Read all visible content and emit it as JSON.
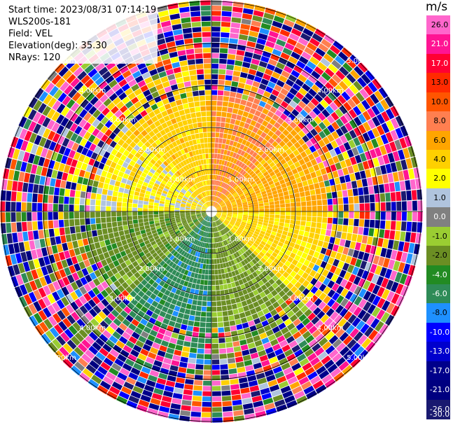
{
  "header": {
    "start_time_label": "Start time: 2023/08/31 07:14:19",
    "instrument_label": "WLS200s-181",
    "field_label": "Field: VEL",
    "elevation_label": "Elevation(deg): 35.30",
    "nrays_label": "NRays: 120"
  },
  "colorbar": {
    "unit": "m/s",
    "ticks": [
      "26.0",
      "21.0",
      "17.0",
      "13.0",
      "10.0",
      "8.0",
      "6.0",
      "4.0",
      "2.0",
      "1.0",
      "0.0",
      "-1.0",
      "-2.0",
      "-4.0",
      "-6.0",
      "-8.0",
      "-10.0",
      "-13.0",
      "-17.0",
      "-21.0",
      "-26.0",
      "-30.0"
    ],
    "colors": [
      "#ff66cc",
      "#ff1493",
      "#ff0033",
      "#ff2a00",
      "#ff5500",
      "#ff7f50",
      "#ffa500",
      "#ffd000",
      "#ffff00",
      "#b0c4de",
      "#808080",
      "#9acd32",
      "#6b8e23",
      "#228b22",
      "#2e8b57",
      "#1e90ff",
      "#0000ff",
      "#0000cd",
      "#00008b",
      "#000080",
      "#191970"
    ]
  },
  "range_rings": {
    "labels": [
      "1.00km",
      "2.00km",
      "3.00km",
      "4.00km",
      "5.00km"
    ]
  },
  "velocity_sectors": [
    {
      "azimuth_start": 0,
      "azimuth_end": 45,
      "value": 6.0
    },
    {
      "azimuth_start": 45,
      "azimuth_end": 90,
      "value": 4.5
    },
    {
      "azimuth_start": 90,
      "azimuth_end": 135,
      "value": 2.5
    },
    {
      "azimuth_start": 135,
      "azimuth_end": 180,
      "value": -2.5
    },
    {
      "azimuth_start": 180,
      "azimuth_end": 225,
      "value": -7.0
    },
    {
      "azimuth_start": 225,
      "azimuth_end": 270,
      "value": -3.0
    },
    {
      "azimuth_start": 270,
      "azimuth_end": 315,
      "value": 1.5
    },
    {
      "azimuth_start": 315,
      "azimuth_end": 360,
      "value": 3.0
    }
  ]
}
